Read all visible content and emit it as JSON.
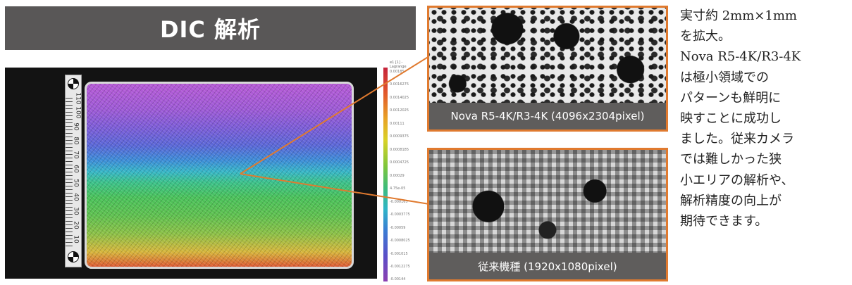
{
  "title": "DIC 解析",
  "ruler": {
    "numbers": [
      "10",
      "20",
      "30",
      "40",
      "50",
      "60",
      "70",
      "80",
      "90",
      "100",
      "110"
    ]
  },
  "legend": {
    "header_line1": "e1 [1] -",
    "header_line2": "Lagrange",
    "ticks": [
      "0.00185",
      "0.0016275",
      "0.0014025",
      "0.0012025",
      "0.00111",
      "0.0009375",
      "0.0008185",
      "0.0004725",
      "0.00029",
      "4.75e-05",
      "-0.000165",
      "-0.0003775",
      "-0.00059",
      "-0.0008025",
      "-0.001015",
      "-0.0012275",
      "-0.00144"
    ],
    "color_top": "#c5233c",
    "color_bottom": "#8c3fb1"
  },
  "zoom_top": {
    "caption": "Nova R5-4K/R3-4K (4096x2304pixel)"
  },
  "zoom_bottom": {
    "caption": "従来機種 (1920x1080pixel)"
  },
  "note_lines": [
    "実寸約 2mm×1mm",
    "を拡大。",
    "Nova R5-4K/R3-4K",
    "は極小領域での",
    "パターンも鮮明に",
    "映すことに成功し",
    "ました。従来カメラ",
    "では難しかった狭",
    "小エリアの解析や、",
    "解析精度の向上が",
    "期待できます。"
  ],
  "colors": {
    "banner": "#595757",
    "caption": "#5f5d5c",
    "accent_orange": "#e07a2f"
  }
}
